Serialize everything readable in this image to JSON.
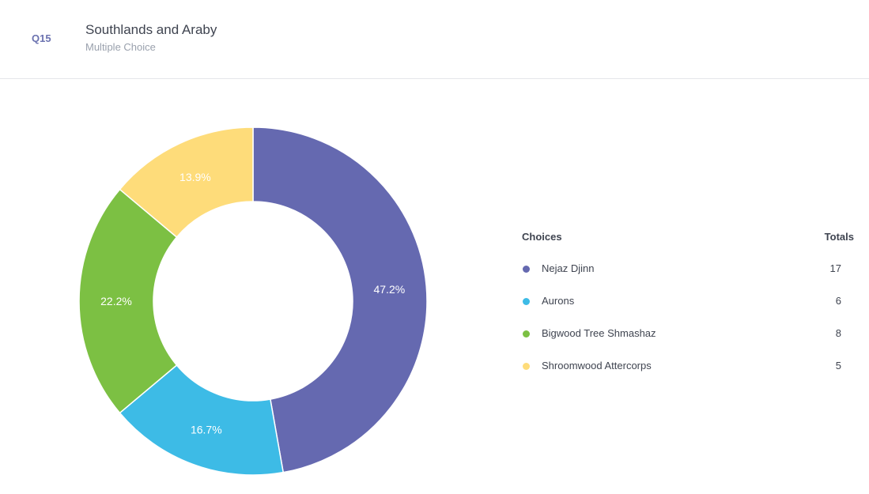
{
  "question": {
    "number": "Q15",
    "title": "Southlands and Araby",
    "subtitle": "Multiple Choice"
  },
  "legend": {
    "choices_header": "Choices",
    "totals_header": "Totals"
  },
  "chart_data": {
    "type": "pie",
    "donut": true,
    "categories": [
      "Nejaz Djinn",
      "Aurons",
      "Bigwood Tree Shmashaz",
      "Shroomwood Attercorps"
    ],
    "values": [
      17,
      6,
      8,
      5
    ],
    "percent_labels": [
      "47.2%",
      "16.7%",
      "22.2%",
      "13.9%"
    ],
    "colors": [
      "#6569b0",
      "#3dbbe6",
      "#7cc043",
      "#fedc7a"
    ],
    "legend_placement": "right"
  }
}
